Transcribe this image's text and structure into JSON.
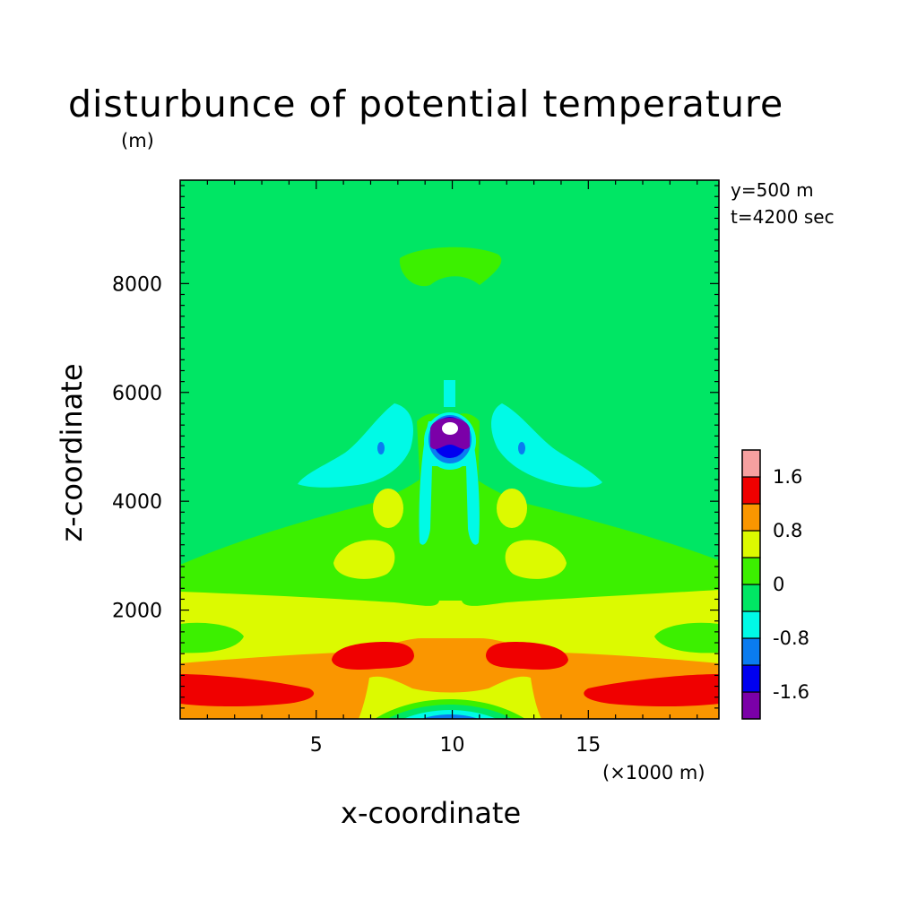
{
  "chart_data": {
    "type": "contour",
    "title": "disturbunce of potential temperature",
    "xlabel": "x-coordinate",
    "ylabel": "z-coordinate",
    "y_unit": "(m)",
    "x_unit": "(×1000 m)",
    "annotations": [
      "y=500 m",
      "t=4200 sec"
    ],
    "xlim": [
      0,
      19.8
    ],
    "ylim": [
      0,
      9900
    ],
    "x_ticks": [
      5,
      10,
      15
    ],
    "x_tick_labels": [
      "5",
      "10",
      "15"
    ],
    "y_ticks": [
      2000,
      4000,
      6000,
      8000
    ],
    "y_tick_labels": [
      "2000",
      "4000",
      "6000",
      "8000"
    ],
    "levels": [
      -2.0,
      -1.6,
      -1.2,
      -0.8,
      -0.4,
      0,
      0.4,
      0.8,
      1.2,
      1.6,
      2.0
    ],
    "level_colors": [
      "#7b00a8",
      "#0000f0",
      "#0a7cf0",
      "#00fae6",
      "#00e664",
      "#3cf000",
      "#dcfa00",
      "#fa9600",
      "#f00000",
      "#f6a0a0"
    ],
    "colorbar_labels": [
      "1.6",
      "0.8",
      "0",
      "-0.8",
      "-1.6"
    ],
    "colorbar_label_values": [
      1.6,
      0.8,
      0,
      -0.8,
      -1.6
    ],
    "background_level_value": 0.0,
    "features": [
      {
        "region": "low-level warm band",
        "x": [
          0,
          19.8
        ],
        "z": [
          0,
          1200
        ],
        "value": 1.0
      },
      {
        "region": "surface maxima",
        "x": [
          0,
          5
        ],
        "z": [
          300,
          900
        ],
        "value": 1.8
      },
      {
        "region": "surface maxima",
        "x": [
          15,
          19.8
        ],
        "z": [
          300,
          900
        ],
        "value": 1.8
      },
      {
        "region": "cold anomaly core",
        "x": [
          9.5,
          10.5
        ],
        "z": [
          5000,
          5500
        ],
        "value": -2.0
      },
      {
        "region": "central warm column",
        "x": [
          9.6,
          10.4
        ],
        "z": [
          1000,
          4400
        ],
        "value": 0.5
      },
      {
        "region": "upper warm patch",
        "x": [
          8,
          12
        ],
        "z": [
          7900,
          8600
        ],
        "value": 0.2
      }
    ]
  }
}
